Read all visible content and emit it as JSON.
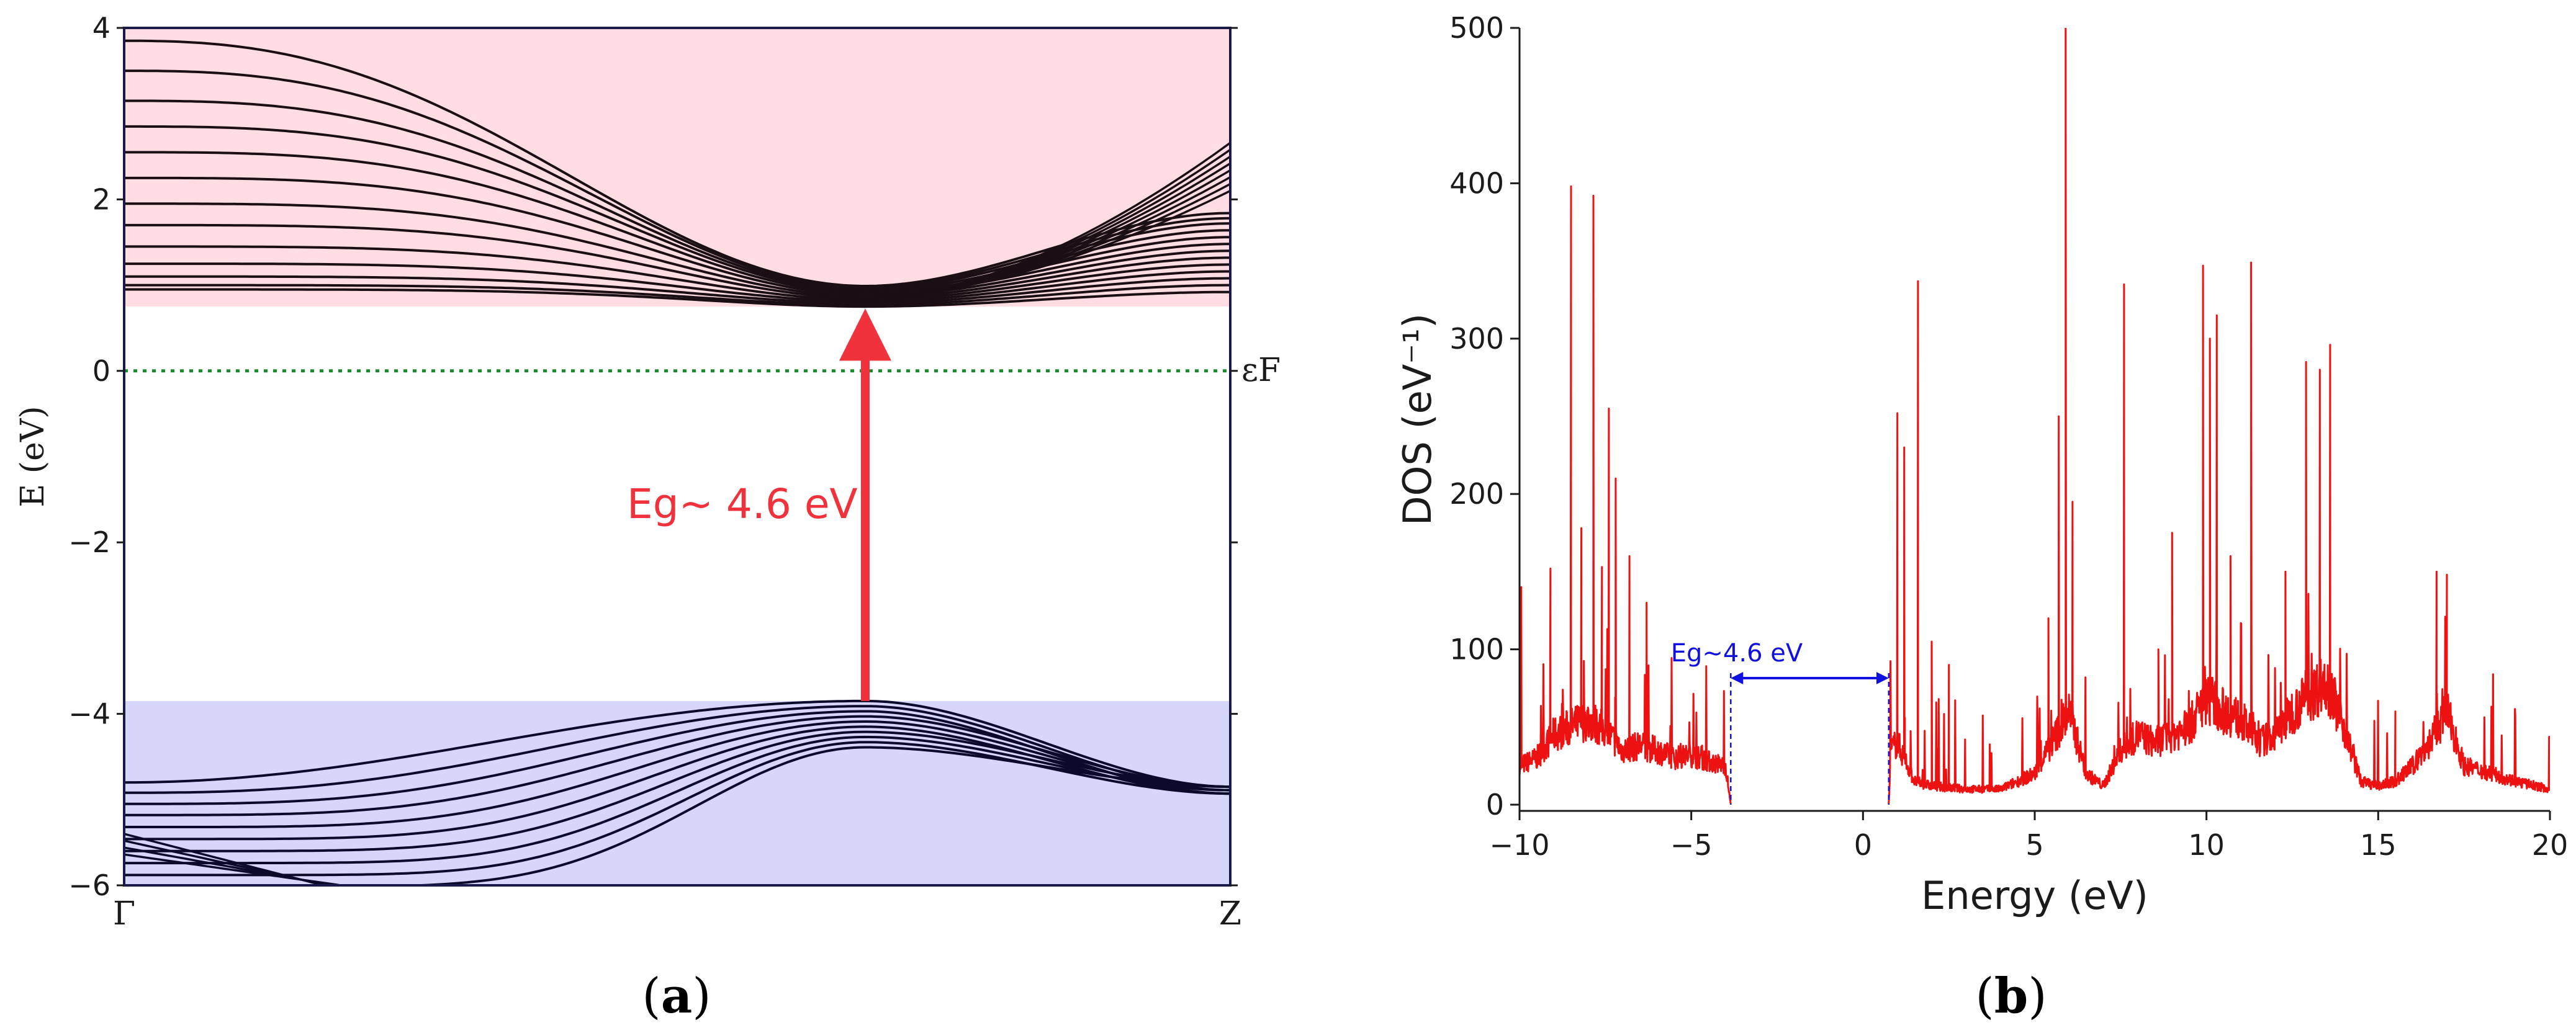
{
  "chart_data": [
    {
      "id": "a",
      "type": "line",
      "title": "",
      "panel_label": "a",
      "xlabel": "",
      "ylabel": "E (eV)",
      "ylim": [
        -6,
        4
      ],
      "yticks": [
        4,
        2,
        0,
        -2,
        -4,
        -6
      ],
      "ytick_labels": [
        "4",
        "2",
        "0",
        "−2",
        "−4",
        "−6"
      ],
      "x_points": [
        "Γ",
        "Z"
      ],
      "fermi_level": {
        "energy": 0,
        "label": "εF"
      },
      "conduction_band_region": {
        "from": 0.75,
        "to": 4,
        "color": "#ffdde3"
      },
      "valence_band_region": {
        "from": -6,
        "to": -3.85,
        "color": "#d6d6fb"
      },
      "conduction_band_gamma_energies": [
        0.95,
        1.0,
        1.1,
        1.25,
        1.45,
        1.7,
        1.95,
        2.25,
        2.55,
        2.85,
        3.15,
        3.5,
        3.85
      ],
      "conduction_band_minimum": {
        "k": 0.67,
        "energy": 0.75
      },
      "valence_band_gamma_energies": [
        -4.8,
        -4.92,
        -5.05,
        -5.18,
        -5.32,
        -5.46,
        -5.6,
        -5.74,
        -5.88,
        -6.02
      ],
      "valence_band_maximum": {
        "k": 0.67,
        "energy": -3.85
      },
      "band_gap": {
        "label": "Eg~ 4.6 eV",
        "value": 4.6,
        "unit": "eV"
      }
    },
    {
      "id": "b",
      "type": "line",
      "title": "",
      "panel_label": "b",
      "xlabel": "Energy (eV)",
      "ylabel": "DOS (eV⁻¹)",
      "xlim": [
        -10,
        20
      ],
      "ylim": [
        0,
        500
      ],
      "xticks": [
        -10,
        -5,
        0,
        5,
        10,
        15,
        20
      ],
      "xtick_labels": [
        "−10",
        "−5",
        "0",
        "5",
        "10",
        "15",
        "20"
      ],
      "yticks": [
        0,
        100,
        200,
        300,
        400,
        500
      ],
      "ytick_labels": [
        "0",
        "100",
        "200",
        "300",
        "400",
        "500"
      ],
      "series_color": "#ee1111",
      "gap": {
        "from": -3.85,
        "to": 0.75,
        "label": "Eg~4.6 eV",
        "color": "#1010e0"
      },
      "baseline": [
        [
          -10,
          25
        ],
        [
          -9.5,
          30
        ],
        [
          -9,
          45
        ],
        [
          -8.5,
          50
        ],
        [
          -8,
          55
        ],
        [
          -7.5,
          48
        ],
        [
          -7,
          35
        ],
        [
          -6.5,
          38
        ],
        [
          -6,
          35
        ],
        [
          -5.5,
          30
        ],
        [
          -5,
          32
        ],
        [
          -4.5,
          28
        ],
        [
          -4,
          25
        ],
        [
          -3.85,
          0
        ],
        [
          0.75,
          0
        ],
        [
          0.8,
          35
        ],
        [
          1,
          40
        ],
        [
          1.5,
          15
        ],
        [
          2,
          12
        ],
        [
          3,
          10
        ],
        [
          4,
          10
        ],
        [
          5,
          20
        ],
        [
          5.5,
          40
        ],
        [
          6,
          60
        ],
        [
          6.5,
          20
        ],
        [
          7,
          12
        ],
        [
          7.5,
          35
        ],
        [
          8,
          45
        ],
        [
          8.5,
          40
        ],
        [
          9,
          45
        ],
        [
          9.5,
          50
        ],
        [
          10,
          70
        ],
        [
          10.5,
          60
        ],
        [
          11,
          55
        ],
        [
          11.5,
          40
        ],
        [
          12,
          45
        ],
        [
          12.5,
          60
        ],
        [
          13,
          70
        ],
        [
          13.5,
          80
        ],
        [
          14,
          50
        ],
        [
          14.5,
          15
        ],
        [
          15,
          12
        ],
        [
          15.5,
          15
        ],
        [
          16,
          25
        ],
        [
          16.5,
          40
        ],
        [
          17,
          60
        ],
        [
          17.5,
          25
        ],
        [
          18,
          22
        ],
        [
          19,
          15
        ],
        [
          20,
          10
        ]
      ],
      "peaks": [
        [
          -9.95,
          140
        ],
        [
          -9.1,
          152
        ],
        [
          -8.5,
          398
        ],
        [
          -8.2,
          178
        ],
        [
          -7.85,
          392
        ],
        [
          -7.6,
          153
        ],
        [
          -7.4,
          255
        ],
        [
          -7.2,
          210
        ],
        [
          -6.8,
          160
        ],
        [
          -6.3,
          130
        ],
        [
          1.0,
          252
        ],
        [
          1.2,
          230
        ],
        [
          1.6,
          337
        ],
        [
          2.0,
          105
        ],
        [
          2.5,
          90
        ],
        [
          5.4,
          120
        ],
        [
          5.7,
          250
        ],
        [
          5.9,
          500
        ],
        [
          6.1,
          195
        ],
        [
          7.6,
          335
        ],
        [
          8.6,
          100
        ],
        [
          9.0,
          175
        ],
        [
          9.9,
          347
        ],
        [
          10.1,
          300
        ],
        [
          10.3,
          315
        ],
        [
          10.7,
          160
        ],
        [
          11.3,
          349
        ],
        [
          12.3,
          150
        ],
        [
          12.9,
          285
        ],
        [
          13.3,
          280
        ],
        [
          13.6,
          296
        ],
        [
          15.5,
          60
        ],
        [
          16.7,
          150
        ],
        [
          17.0,
          148
        ]
      ]
    }
  ]
}
